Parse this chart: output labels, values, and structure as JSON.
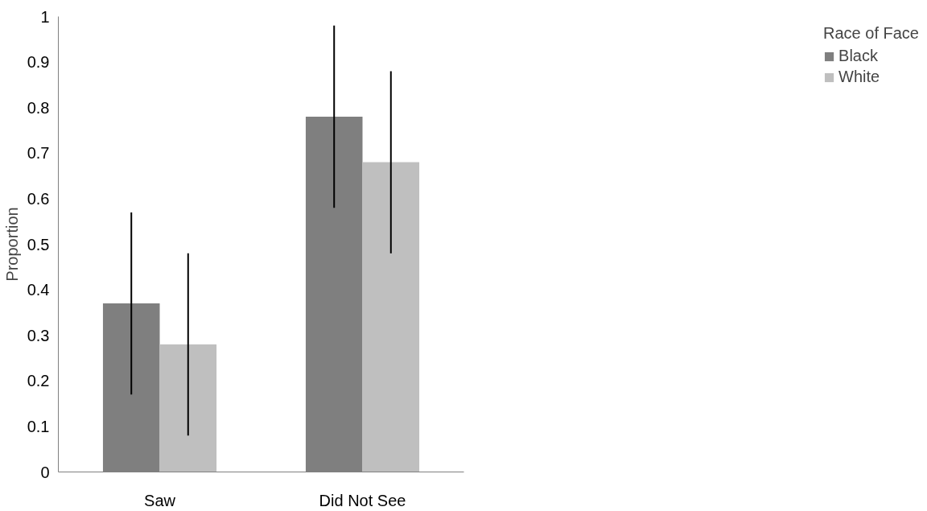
{
  "chart_data": {
    "type": "bar",
    "ylabel": "Proportion",
    "legend_title": "Race of Face",
    "categories": [
      "Saw",
      "Did Not See"
    ],
    "series": [
      {
        "name": "Black",
        "color": "#7f7f7f",
        "values": [
          0.37,
          0.78
        ],
        "errors": [
          0.2,
          0.2
        ]
      },
      {
        "name": "White",
        "color": "#bfbfbf",
        "values": [
          0.28,
          0.68
        ],
        "errors": [
          0.2,
          0.2
        ]
      }
    ],
    "ylim": [
      0,
      1
    ],
    "yticks": [
      0,
      0.1,
      0.2,
      0.3,
      0.4,
      0.5,
      0.6,
      0.7,
      0.8,
      0.9,
      1
    ],
    "grid": false,
    "legend": "right"
  }
}
